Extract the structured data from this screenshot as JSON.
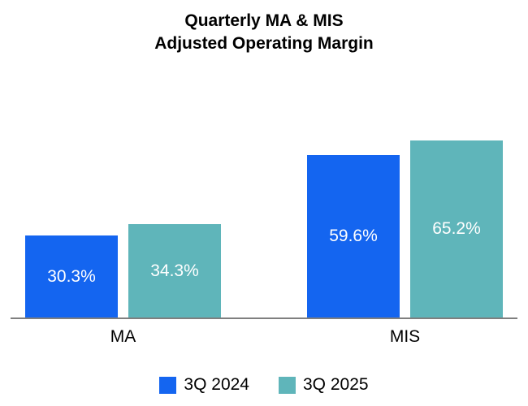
{
  "title": {
    "line1": "Quarterly MA & MIS",
    "line2": "Adjusted Operating Margin"
  },
  "chart_data": {
    "type": "bar",
    "title": "Quarterly MA & MIS Adjusted Operating Margin",
    "categories": [
      "MA",
      "MIS"
    ],
    "series": [
      {
        "name": "3Q 2024",
        "color": "#1465f0",
        "values": [
          30.3,
          59.6
        ]
      },
      {
        "name": "3Q 2025",
        "color": "#5fb5ba",
        "values": [
          34.3,
          65.2
        ]
      }
    ],
    "value_suffix": "%",
    "xlabel": "",
    "ylabel": "",
    "ylim": [
      0,
      95
    ],
    "grid": false,
    "legend_position": "bottom",
    "data_labels": [
      "30.3%",
      "34.3%",
      "59.6%",
      "65.2%"
    ],
    "axis_line_color": "#7f7f7f",
    "label_text_color": "#ffffff"
  }
}
